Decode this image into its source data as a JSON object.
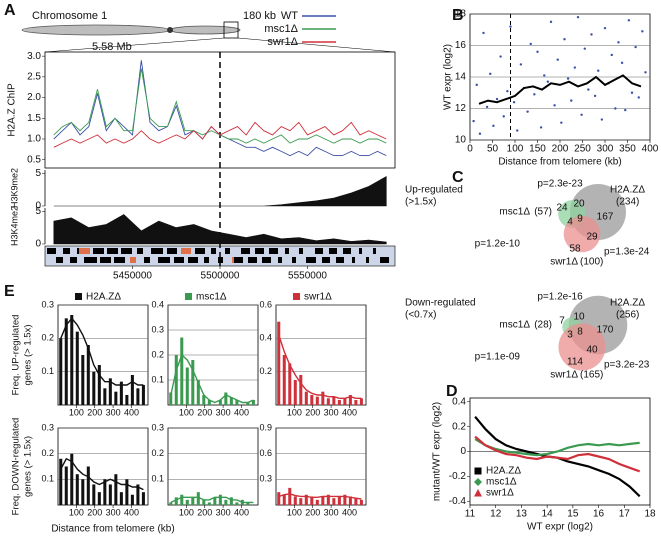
{
  "chart_data": [
    {
      "type": "line",
      "panel": "A",
      "chromosome": "Chromosome 1",
      "region_label": "180 kb",
      "position_label": "5.58 Mb",
      "ylabel": "H2A.Z ChIP",
      "x": [
        5405000,
        5410000,
        5415000,
        5420000,
        5425000,
        5430000,
        5435000,
        5440000,
        5445000,
        5450000,
        5455000,
        5460000,
        5465000,
        5470000,
        5475000,
        5480000,
        5485000,
        5490000,
        5495000,
        5500000,
        5505000,
        5510000,
        5515000,
        5520000,
        5525000,
        5530000,
        5535000,
        5540000,
        5545000,
        5550000,
        5555000,
        5560000,
        5565000,
        5570000,
        5575000,
        5580000,
        5585000,
        5590000,
        5595000
      ],
      "series": [
        {
          "name": "WT",
          "color": "#3b4fa8",
          "values": [
            1.0,
            1.2,
            1.4,
            1.1,
            1.3,
            2.1,
            1.2,
            1.5,
            1.3,
            1.1,
            2.9,
            1.4,
            1.2,
            1.3,
            1.8,
            1.1,
            1.2,
            1.0,
            1.3,
            1.1,
            1.0,
            0.9,
            0.8,
            0.8,
            0.7,
            0.8,
            0.7,
            0.6,
            0.7,
            0.6,
            0.8,
            0.7,
            0.6,
            0.6,
            0.7,
            0.6,
            0.6,
            0.7,
            0.6
          ]
        },
        {
          "name": "msc1Δ",
          "color": "#3a9a50",
          "values": [
            1.1,
            1.3,
            1.4,
            1.2,
            1.4,
            2.2,
            1.3,
            1.5,
            1.2,
            1.2,
            2.7,
            1.5,
            1.3,
            1.3,
            1.9,
            1.2,
            1.2,
            1.1,
            1.2,
            1.1,
            1.0,
            1.0,
            0.9,
            1.0,
            0.9,
            1.0,
            1.1,
            0.9,
            1.0,
            1.0,
            1.1,
            1.0,
            0.9,
            1.0,
            1.0,
            0.9,
            1.0,
            1.0,
            0.9
          ]
        },
        {
          "name": "swr1Δ",
          "color": "#d0303a",
          "values": [
            0.8,
            0.9,
            1.0,
            0.9,
            1.0,
            1.1,
            0.9,
            1.0,
            0.9,
            1.0,
            1.2,
            1.0,
            0.9,
            1.0,
            1.1,
            1.0,
            1.2,
            1.0,
            1.3,
            1.1,
            1.2,
            1.3,
            1.1,
            1.4,
            1.2,
            1.1,
            1.3,
            1.2,
            1.4,
            1.1,
            1.2,
            1.3,
            1.1,
            1.2,
            1.4,
            1.1,
            1.2,
            1.1,
            1.0
          ]
        }
      ],
      "xlim": [
        5400000,
        5600000
      ],
      "xticks": [
        5450000,
        5500000,
        5550000
      ],
      "marker_x": 5500000,
      "ylim": [
        0.3,
        3.1
      ],
      "yticks": [
        0.5,
        {
          "value": 1,
          "label": "1.0"
        },
        1.5,
        {
          "value": 2,
          "label": "2.0"
        },
        2.5,
        {
          "value": 3,
          "label": "3.0"
        }
      ],
      "legend": "top-right"
    },
    {
      "type": "area",
      "ylabel": "H3K9me2",
      "color": "#111111",
      "x": [
        5405000,
        5415000,
        5425000,
        5435000,
        5445000,
        5455000,
        5465000,
        5475000,
        5485000,
        5495000,
        5505000,
        5515000,
        5525000,
        5535000,
        5545000,
        5555000,
        5565000,
        5575000,
        5585000,
        5595000
      ],
      "values": [
        0,
        0,
        0,
        0,
        0,
        0,
        0,
        0,
        0,
        0,
        0,
        0,
        0,
        0.2,
        0.5,
        0.8,
        1.2,
        2.0,
        3.0,
        4.5
      ],
      "xlim": [
        5400000,
        5600000
      ],
      "ylim": [
        0,
        5.5
      ],
      "yticks": [
        0,
        5
      ]
    },
    {
      "type": "area",
      "ylabel": "H3K4me2",
      "color": "#111111",
      "x": [
        5405000,
        5415000,
        5425000,
        5435000,
        5445000,
        5455000,
        5465000,
        5475000,
        5485000,
        5495000,
        5505000,
        5515000,
        5525000,
        5535000,
        5545000,
        5555000,
        5565000,
        5575000,
        5585000,
        5595000
      ],
      "values": [
        3.5,
        4.0,
        2.5,
        3.0,
        4.5,
        2.0,
        3.5,
        2.5,
        3.0,
        2.0,
        1.5,
        1.0,
        1.5,
        0.8,
        1.0,
        0.5,
        0.8,
        0.4,
        0.6,
        0.3
      ],
      "xlim": [
        5400000,
        5600000
      ],
      "ylim": [
        0,
        5.5
      ],
      "yticks": [
        0,
        5
      ]
    },
    {
      "type": "scatter",
      "panel": "B",
      "xlabel": "Distance from telomere (kb)",
      "ylabel": "WT expr (log2)",
      "points": {
        "color": "#3b4fa8",
        "x": [
          8,
          15,
          22,
          30,
          38,
          45,
          52,
          60,
          68,
          75,
          83,
          90,
          98,
          105,
          113,
          120,
          128,
          135,
          143,
          150,
          158,
          165,
          173,
          180,
          188,
          195,
          203,
          210,
          218,
          225,
          233,
          240,
          248,
          255,
          263,
          270,
          278,
          285,
          293,
          300,
          308,
          315,
          323,
          330,
          338,
          345,
          353,
          360,
          368,
          375,
          383,
          390
        ],
        "y": [
          11.2,
          13.5,
          10.4,
          16.8,
          12.1,
          14.2,
          10.9,
          12.6,
          15.3,
          11.5,
          13.1,
          17.2,
          12.4,
          10.6,
          14.8,
          13.3,
          11.8,
          16.1,
          12.9,
          15.6,
          10.8,
          14.1,
          13.7,
          17.5,
          12.2,
          15.1,
          11.1,
          16.4,
          13.9,
          12.5,
          14.6,
          17.8,
          11.6,
          15.8,
          13.2,
          16.7,
          12.8,
          14.4,
          11.3,
          17.1,
          13.6,
          15.4,
          12.0,
          16.2,
          14.9,
          11.9,
          17.6,
          13.0,
          15.9,
          12.7,
          16.9,
          14.3
        ]
      },
      "trend": {
        "color": "#000000",
        "x": [
          20,
          40,
          60,
          80,
          100,
          120,
          140,
          160,
          180,
          200,
          220,
          240,
          260,
          280,
          300,
          320,
          340,
          360,
          380
        ],
        "y": [
          12.3,
          12.5,
          12.4,
          12.6,
          12.8,
          13.3,
          13.4,
          13.2,
          13.6,
          13.5,
          13.7,
          13.4,
          13.6,
          14.0,
          13.5,
          13.8,
          14.1,
          13.6,
          13.4
        ]
      },
      "marker_x": 90,
      "xlim": [
        0,
        400
      ],
      "xticks": [
        0,
        50,
        100,
        150,
        200,
        250,
        300,
        350,
        400
      ],
      "ylim": [
        10,
        18
      ],
      "yticks": [
        10,
        12,
        14,
        16,
        18
      ],
      "grid": true
    },
    {
      "type": "venn",
      "panel": "C",
      "title": "Up-regulated",
      "subtitle": "(>1.5x)",
      "sets": [
        {
          "name": "H2A.ZΔ",
          "size": 234,
          "size_label": "(234)",
          "color": "#9a9a9a"
        },
        {
          "name": "msc1Δ",
          "size": 57,
          "size_label": "(57)",
          "color": "#8fd19e"
        },
        {
          "name": "swr1Δ",
          "size": 100,
          "size_label": "(100)",
          "color": "#eb8f8f"
        }
      ],
      "regions": [
        167,
        24,
        20,
        4,
        9,
        29,
        58
      ],
      "p_values": [
        "p=2.3e-23",
        "p=1.2e-10",
        "p=1.3e-24"
      ]
    },
    {
      "type": "venn",
      "title": "Down-regulated",
      "subtitle": "(<0.7x)",
      "sets": [
        {
          "name": "H2A.ZΔ",
          "size": 256,
          "size_label": "(256)",
          "color": "#9a9a9a"
        },
        {
          "name": "msc1Δ",
          "size": 28,
          "size_label": "(28)",
          "color": "#8fd19e"
        },
        {
          "name": "swr1Δ",
          "size": 165,
          "size_label": "(165)",
          "color": "#eb8f8f"
        }
      ],
      "regions": [
        170,
        7,
        10,
        3,
        8,
        40,
        114
      ],
      "p_values": [
        "p=1.2e-16",
        "p=1.1e-09",
        "p=3.2e-23"
      ]
    },
    {
      "type": "line",
      "panel": "D",
      "xlabel": "WT expr (log2)",
      "ylabel": "mutant/WT expr (log2)",
      "x": [
        11.2,
        11.6,
        12.0,
        12.4,
        12.8,
        13.2,
        13.6,
        14.0,
        14.4,
        14.8,
        15.2,
        15.6,
        16.0,
        16.4,
        16.8,
        17.2,
        17.6
      ],
      "series": [
        {
          "name": "H2A.ZΔ",
          "color": "#000000",
          "marker": "square",
          "values": [
            0.28,
            0.18,
            0.1,
            0.05,
            0.02,
            0.0,
            -0.02,
            -0.04,
            -0.05,
            -0.08,
            -0.1,
            -0.12,
            -0.15,
            -0.18,
            -0.22,
            -0.28,
            -0.36
          ]
        },
        {
          "name": "msc1Δ",
          "color": "#3a9a50",
          "marker": "diamond",
          "values": [
            0.1,
            0.05,
            0.02,
            0.0,
            -0.01,
            -0.02,
            -0.03,
            -0.02,
            0.0,
            0.03,
            0.05,
            0.06,
            0.05,
            0.06,
            0.05,
            0.06,
            0.07
          ]
        },
        {
          "name": "swr1Δ",
          "color": "#d0303a",
          "marker": "triangle",
          "values": [
            0.12,
            0.05,
            0.01,
            -0.02,
            -0.03,
            -0.05,
            -0.06,
            -0.04,
            -0.05,
            -0.06,
            -0.03,
            -0.02,
            -0.04,
            -0.06,
            -0.1,
            -0.13,
            -0.16
          ]
        }
      ],
      "xlim": [
        11,
        18
      ],
      "xticks": [
        11,
        12,
        13,
        14,
        15,
        16,
        17,
        18
      ],
      "ylim": [
        -0.43,
        0.43
      ],
      "yticks": [
        -0.4,
        -0.2,
        0,
        0.2,
        0.4
      ],
      "legend": "bottom-left"
    },
    {
      "type": "bar",
      "panel": "E",
      "legend": "H2A.ZΔ",
      "color": "#111111",
      "ylabel": [
        "Freq. UP-regulated",
        "genes (> 1.5x)"
      ],
      "x": [
        15,
        45,
        75,
        105,
        135,
        165,
        195,
        225,
        255,
        285,
        315,
        345,
        375,
        405,
        435,
        465
      ],
      "values": [
        0.2,
        0.26,
        0.27,
        0.22,
        0.15,
        0.18,
        0.1,
        0.12,
        0.05,
        0.08,
        0.04,
        0.07,
        0.03,
        0.09,
        0.05,
        0.06
      ],
      "smooth": [
        0.2,
        0.24,
        0.26,
        0.24,
        0.21,
        0.17,
        0.12,
        0.09,
        0.07,
        0.07,
        0.06,
        0.06,
        0.06,
        0.07,
        0.06,
        0.06
      ],
      "xlim": [
        0,
        490
      ],
      "xticks": [
        100,
        200,
        300,
        400
      ],
      "ylim": [
        0,
        0.3
      ],
      "yticks": [
        0.1,
        0.2,
        0.3
      ],
      "grid": true
    },
    {
      "type": "bar",
      "legend": "msc1Δ",
      "color": "#3a9a50",
      "x": [
        15,
        45,
        75,
        105,
        135,
        165,
        195,
        225,
        255,
        285,
        315,
        345,
        375,
        405,
        435,
        465
      ],
      "values": [
        0.05,
        0.2,
        0.27,
        0.15,
        0.18,
        0.1,
        0.04,
        0.02,
        0.0,
        0.02,
        0.05,
        0.03,
        0.02,
        0.0,
        0.01,
        0.02
      ],
      "smooth": [
        0.04,
        0.14,
        0.2,
        0.18,
        0.14,
        0.09,
        0.04,
        0.02,
        0.01,
        0.02,
        0.04,
        0.03,
        0.02,
        0.01,
        0.01,
        0.02
      ],
      "xlim": [
        0,
        490
      ],
      "xticks": [
        100,
        200,
        300,
        400
      ],
      "ylim": [
        0,
        0.4
      ],
      "yticks": [
        0.1,
        0.2,
        0.3,
        0.4
      ],
      "grid": true
    },
    {
      "type": "bar",
      "legend": "swr1Δ",
      "color": "#d0303a",
      "x": [
        15,
        45,
        75,
        105,
        135,
        165,
        195,
        225,
        255,
        285,
        315,
        345,
        375,
        405,
        435,
        465
      ],
      "values": [
        0.5,
        0.3,
        0.25,
        0.15,
        0.18,
        0.08,
        0.06,
        0.05,
        0.08,
        0.04,
        0.05,
        0.03,
        0.04,
        0.06,
        0.03,
        0.04
      ],
      "smooth": [
        0.42,
        0.32,
        0.24,
        0.18,
        0.13,
        0.09,
        0.07,
        0.06,
        0.06,
        0.05,
        0.05,
        0.04,
        0.04,
        0.05,
        0.04,
        0.04
      ],
      "xlim": [
        0,
        490
      ],
      "xticks": [
        100,
        200,
        300,
        400
      ],
      "ylim": [
        0,
        0.6
      ],
      "yticks": [
        0.2,
        0.4,
        0.6
      ],
      "grid": true
    },
    {
      "type": "bar",
      "color": "#111111",
      "ylabel": [
        "Freq. DOWN-regulated",
        "genes (> 1.5x)"
      ],
      "xlabel": "Distance from telomere (kb)",
      "x": [
        15,
        45,
        75,
        105,
        135,
        165,
        195,
        225,
        255,
        285,
        315,
        345,
        375,
        405,
        435,
        465
      ],
      "values": [
        0.18,
        0.15,
        0.2,
        0.12,
        0.1,
        0.15,
        0.08,
        0.05,
        0.1,
        0.08,
        0.12,
        0.05,
        0.1,
        0.04,
        0.08,
        0.05
      ],
      "smooth": [
        0.14,
        0.18,
        0.17,
        0.14,
        0.12,
        0.11,
        0.09,
        0.08,
        0.09,
        0.1,
        0.09,
        0.08,
        0.08,
        0.07,
        0.07,
        0.06
      ],
      "xlim": [
        0,
        490
      ],
      "xticks": [
        100,
        200,
        300,
        400
      ],
      "ylim": [
        0,
        0.3
      ],
      "yticks": [
        0.1,
        0.2,
        0.3
      ],
      "grid": true
    },
    {
      "type": "bar",
      "color": "#3a9a50",
      "x": [
        15,
        45,
        75,
        105,
        135,
        165,
        195,
        225,
        255,
        285,
        315,
        345,
        375,
        405,
        435,
        465
      ],
      "values": [
        0.01,
        0.03,
        0.04,
        0.02,
        0.03,
        0.05,
        0.02,
        0.01,
        0.03,
        0.04,
        0.02,
        0.03,
        0.01,
        0.02,
        0.01,
        0.0
      ],
      "smooth": [
        0.01,
        0.02,
        0.03,
        0.03,
        0.03,
        0.03,
        0.02,
        0.02,
        0.03,
        0.03,
        0.03,
        0.02,
        0.02,
        0.01,
        0.01,
        0.01
      ],
      "xlim": [
        0,
        490
      ],
      "xticks": [
        100,
        200,
        300,
        400
      ],
      "ylim": [
        0,
        0.3
      ],
      "yticks": [
        0.1,
        0.2,
        0.3
      ],
      "grid": true
    },
    {
      "type": "bar",
      "color": "#d0303a",
      "x": [
        15,
        45,
        75,
        105,
        135,
        165,
        195,
        225,
        255,
        285,
        315,
        345,
        375,
        405,
        435,
        465
      ],
      "values": [
        0.15,
        0.12,
        0.2,
        0.1,
        0.08,
        0.12,
        0.1,
        0.06,
        0.1,
        0.12,
        0.08,
        0.1,
        0.12,
        0.1,
        0.08,
        0.06
      ],
      "smooth": [
        0.1,
        0.12,
        0.13,
        0.11,
        0.1,
        0.1,
        0.09,
        0.09,
        0.1,
        0.1,
        0.1,
        0.1,
        0.1,
        0.09,
        0.08,
        0.07
      ],
      "xlim": [
        0,
        490
      ],
      "xticks": [
        100,
        200,
        300,
        400
      ],
      "ylim": [
        0,
        0.9
      ],
      "yticks": [
        0.3,
        0.6,
        0.9
      ],
      "grid": true
    }
  ]
}
